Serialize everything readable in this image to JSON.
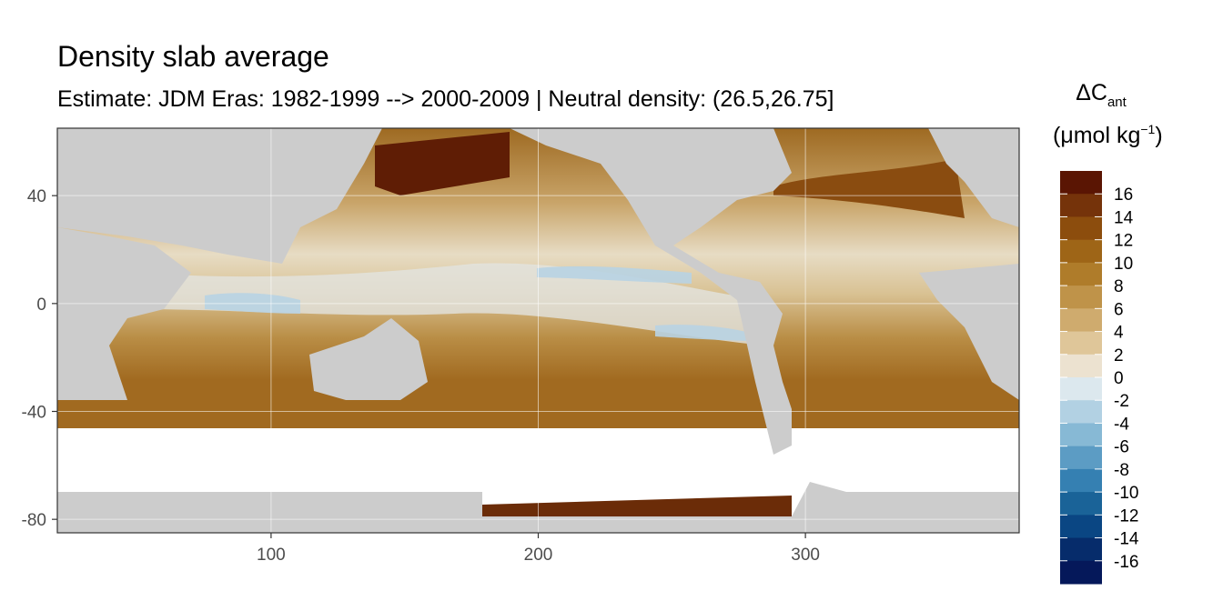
{
  "title": "Density slab average",
  "subtitle": "Estimate: JDM Eras: 1982-1999 --> 2000-2009 | Neutral density: (26.5,26.75]",
  "legend": {
    "title_main": "ΔC",
    "title_sub": "ant",
    "unit_text": "(μmol kg",
    "unit_sup": "−1",
    "unit_close": ")",
    "labels": [
      "16",
      "14",
      "12",
      "10",
      "8",
      "6",
      "4",
      "2",
      "0",
      "-2",
      "-4",
      "-6",
      "-8",
      "-10",
      "-12",
      "-14",
      "-16"
    ],
    "colors": [
      "#5a1503",
      "#75330a",
      "#8c4d0d",
      "#9e6517",
      "#af7c2a",
      "#bf9349",
      "#cfab6e",
      "#dfc699",
      "#ece2d0",
      "#dce8ee",
      "#b2d1e3",
      "#87b9d5",
      "#5c9cc4",
      "#3580b2",
      "#1a6398",
      "#0a4683",
      "#062c6b",
      "#05185a"
    ]
  },
  "chart_data": {
    "type": "heatmap",
    "title": "Density slab average",
    "subtitle": "Estimate: JDM Eras: 1982-1999 --> 2000-2009 | Neutral density: (26.5,26.75]",
    "xlabel": "",
    "ylabel": "",
    "xlim": [
      20,
      380
    ],
    "ylim": [
      -85,
      65
    ],
    "x_ticks": [
      100,
      200,
      300
    ],
    "y_ticks": [
      40,
      0,
      -40,
      -80
    ],
    "grid": true,
    "legend_position": "right",
    "value_range": [
      -18,
      18
    ],
    "value_step": 2,
    "colorbar_title": "ΔC_ant (μmol kg^-1)"
  }
}
